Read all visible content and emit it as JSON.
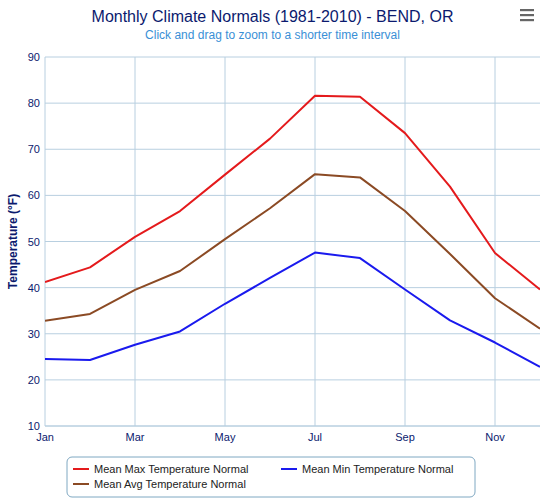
{
  "chart_data": {
    "type": "line",
    "title": "Monthly Climate Normals (1981-2010) - BEND, OR",
    "subtitle": "Click and drag to zoom to a shorter time interval",
    "y_label": "Temperature (°F)",
    "categories": [
      "Jan",
      null,
      "Mar",
      null,
      "May",
      null,
      "Jul",
      null,
      "Sep",
      null,
      "Nov",
      null
    ],
    "series": [
      {
        "name": "Mean Max Temperature Normal",
        "color": "#e41a1c",
        "values": [
          41.2,
          44.4,
          51.0,
          56.6,
          64.5,
          72.3,
          81.6,
          81.4,
          73.5,
          61.9,
          47.5,
          39.6
        ]
      },
      {
        "name": "Mean Min Temperature Normal",
        "color": "#1a1aee",
        "values": [
          24.5,
          24.3,
          27.6,
          30.5,
          36.5,
          42.1,
          47.6,
          46.4,
          39.6,
          32.9,
          28.1,
          22.8
        ]
      },
      {
        "name": "Mean Avg Temperature Normal",
        "color": "#8b4a24",
        "values": [
          32.8,
          34.3,
          39.5,
          43.6,
          50.5,
          57.2,
          64.6,
          63.9,
          56.6,
          47.3,
          37.7,
          31.1
        ]
      }
    ],
    "ylim": [
      10,
      90
    ],
    "yticks": [
      10,
      20,
      30,
      40,
      50,
      60,
      70,
      80,
      90
    ],
    "grid": true,
    "legend": "bottom"
  }
}
